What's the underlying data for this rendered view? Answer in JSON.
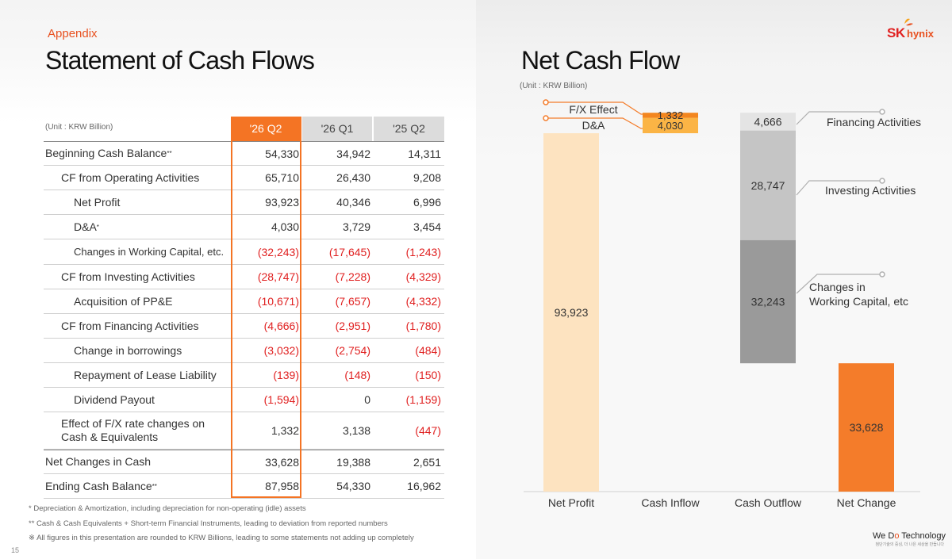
{
  "header": {
    "appendix": "Appendix",
    "title_left": "Statement of Cash Flows",
    "title_right": "Net Cash Flow",
    "unit_table": "(Unit : KRW Billion)",
    "unit_chart": "(Unit : KRW Billion)",
    "brand_sk": "SK",
    "brand_hynix": "hynix"
  },
  "table": {
    "columns": [
      "'26 Q2",
      "'26 Q1",
      "'25 Q2"
    ],
    "rows": [
      {
        "label": "Beginning Cash Balance",
        "sup": "**",
        "values": [
          "54,330",
          "34,942",
          "14,311"
        ]
      },
      {
        "label": "CF from Operating Activities",
        "values": [
          "65,710",
          "26,430",
          "9,208"
        ]
      },
      {
        "label": "Net Profit",
        "values": [
          "93,923",
          "40,346",
          "6,996"
        ]
      },
      {
        "label": "D&A",
        "sup": "*",
        "values": [
          "4,030",
          "3,729",
          "3,454"
        ]
      },
      {
        "label": "Changes in Working Capital, etc.",
        "values": [
          "(32,243)",
          "(17,645)",
          "(1,243)"
        ]
      },
      {
        "label": "CF from Investing Activities",
        "values": [
          "(28,747)",
          "(7,228)",
          "(4,329)"
        ]
      },
      {
        "label": "Acquisition of PP&E",
        "values": [
          "(10,671)",
          "(7,657)",
          "(4,332)"
        ]
      },
      {
        "label": "CF from Financing Activities",
        "values": [
          "(4,666)",
          "(2,951)",
          "(1,780)"
        ]
      },
      {
        "label": "Change in borrowings",
        "values": [
          "(3,032)",
          "(2,754)",
          "(484)"
        ]
      },
      {
        "label": "Repayment of Lease Liability",
        "values": [
          "(139)",
          "(148)",
          "(150)"
        ]
      },
      {
        "label": "Dividend Payout",
        "values": [
          "(1,594)",
          "0",
          "(1,159)"
        ]
      },
      {
        "label": "Effect of F/X rate changes on Cash & Equivalents",
        "values": [
          "1,332",
          "3,138",
          "(447)"
        ]
      },
      {
        "label": "Net Changes in Cash",
        "values": [
          "33,628",
          "19,388",
          "2,651"
        ]
      },
      {
        "label": "Ending Cash Balance",
        "sup": "**",
        "values": [
          "87,958",
          "54,330",
          "16,962"
        ]
      }
    ]
  },
  "footnotes": [
    "* Depreciation & Amortization, including depreciation for non-operating (idle) assets",
    "** Cash & Cash Equivalents + Short-term Financial Instruments, leading to deviation from reported numbers",
    "※ All figures in this presentation are rounded to KRW Billions, leading to some statements not adding up completely"
  ],
  "page_number": "15",
  "slogan": {
    "pre": "We D",
    "o": "o",
    "post": " Technology",
    "sub": "첨단기술의 중심, 더 나은 세상을 만듭니다"
  },
  "chart_data": {
    "type": "waterfall",
    "title": "Net Cash Flow",
    "unit": "(Unit : KRW Billion)",
    "categories": [
      "Net Profit",
      "Cash Inflow",
      "Cash Outflow",
      "Net Change"
    ],
    "segments": [
      {
        "category": "Net Profit",
        "label": "Net Profit",
        "value": 93923,
        "display": "93,923",
        "color": "#fde3c0"
      },
      {
        "category": "Cash Inflow",
        "label": "D&A",
        "value": 4030,
        "display": "4,030",
        "color": "#fbb445"
      },
      {
        "category": "Cash Inflow",
        "label": "F/X Effect",
        "value": 1332,
        "display": "1,332",
        "color": "#f3861f"
      },
      {
        "category": "Cash Outflow",
        "label": "Financing Activities",
        "value": -4666,
        "display": "4,666",
        "color": "#e4e4e4"
      },
      {
        "category": "Cash Outflow",
        "label": "Investing Activities",
        "value": -28747,
        "display": "28,747",
        "color": "#c5c5c5"
      },
      {
        "category": "Cash Outflow",
        "label": "Changes in Working Capital, etc",
        "value": -32243,
        "display": "32,243",
        "color": "#9a9a9a"
      },
      {
        "category": "Net Change",
        "label": "Net Change",
        "value": 33628,
        "display": "33,628",
        "color": "#f47c2a"
      }
    ],
    "annotations": [
      "F/X Effect",
      "D&A",
      "Financing Activities",
      "Investing Activities",
      "Changes in",
      "Working Capital, etc"
    ]
  }
}
